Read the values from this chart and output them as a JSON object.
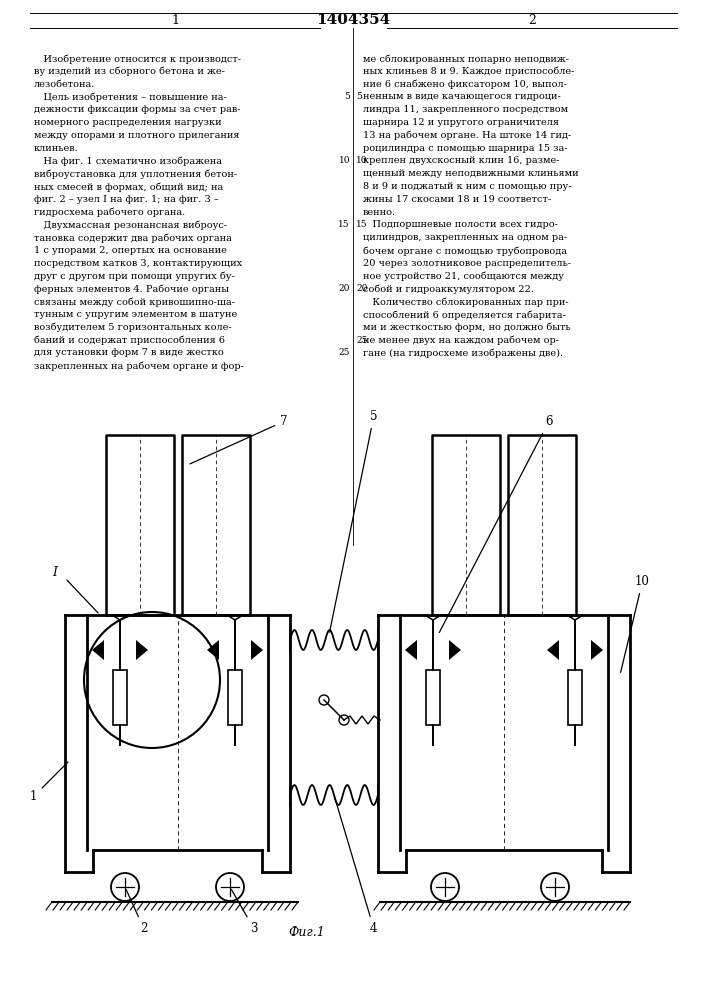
{
  "title": "1404354",
  "col1_num": "1",
  "col2_num": "2",
  "col1_text": [
    "   Изобретение относится к производст-",
    "ву изделий из сборного бетона и же-",
    "лезобетона.",
    "   Цель изобретения – повышение на-",
    "дежности фиксации формы за счет рав-",
    "номерного распределения нагрузки",
    "между опорами и плотного прилегания",
    "клиньев.",
    "   На фиг. 1 схематично изображена",
    "виброустановка для уплотнения бетон-",
    "ных смесей в формах, общий вид; на",
    "фиг. 2 – узел I на фиг. 1; на фиг. 3 –",
    "гидросхема рабочего органа.",
    "   Двухмассная резонансная виброус-",
    "тановка содержит два рабочих органа",
    "1 с упорами 2, опертых на основание",
    "посредством катков 3, контактирующих",
    "друг с другом при помощи упругих бу-",
    "ферных элементов 4. Рабочие органы",
    "связаны между собой кривошипно-ша-",
    "тунным с упругим элементом в шатуне",
    "возбудителем 5 горизонтальных коле-",
    "баний и содержат приспособления 6",
    "для установки форм 7 в виде жестко",
    "закрепленных на рабочем органе и фор-"
  ],
  "col2_text": [
    "ме сблокированных попарно неподвиж-",
    "ных клиньев 8 и 9. Каждое приспособле-",
    "ние 6 снабжено фиксатором 10, выпол-",
    "ненным в виде качающегося гидроци-",
    "линдра 11, закрепленного посредством",
    "шарнира 12 и упругого ограничителя",
    "13 на рабочем органе. На штоке 14 гид-",
    "роцилиндра с помощью шарнира 15 за-",
    "креплен двухскосный клин 16, разме-",
    "щенный между неподвижными клиньями",
    "8 и 9 и поджатый к ним с помощью пру-",
    "жины 17 скосами 18 и 19 соответст-",
    "венно.",
    "   Подпоршневые полости всех гидро-",
    "цилиндров, закрепленных на одном ра-",
    "бочем органе с помощью трубопровода",
    "20 через золотниковое распределитель-",
    "ное устройство 21, сообщаются между",
    "собой и гидроаккумулятором 22.",
    "   Количество сблокированных пар при-",
    "способлений 6 определяется габарита-",
    "ми и жесткостью форм, но должно быть",
    "не менее двух на каждом рабочем ор-",
    "гане (на гидросхеме изображены две)."
  ],
  "lw_main": 1.8,
  "lw_thin": 0.8,
  "font_text": 7.0,
  "font_label": 8.5
}
